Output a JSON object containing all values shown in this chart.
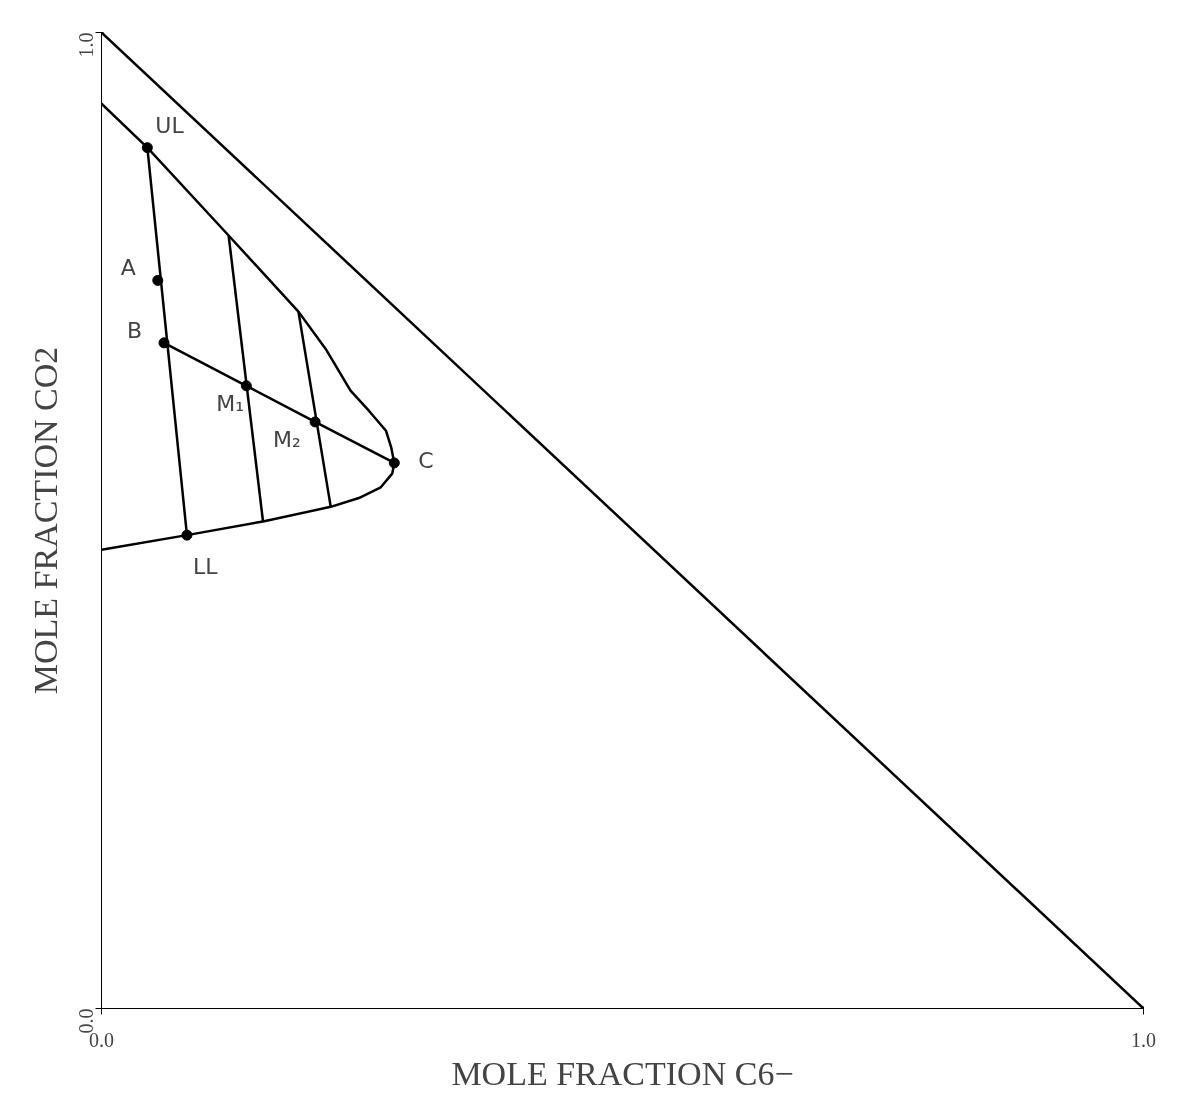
{
  "chart_data": {
    "type": "line",
    "xlabel": "MOLE FRACTION C6−",
    "ylabel": "MOLE FRACTION CO2",
    "xlim": [
      0,
      1
    ],
    "ylim": [
      0,
      1
    ],
    "xticks": [
      {
        "value": 0,
        "label": "0.0"
      },
      {
        "value": 1,
        "label": "1.0"
      }
    ],
    "yticks": [
      {
        "value": 0,
        "label": "0.0"
      },
      {
        "value": 1,
        "label": "1.0"
      }
    ],
    "marker": "none",
    "line_style": "solid",
    "series": [
      {
        "color": "#000000",
        "x": [
          0,
          1
        ],
        "values": [
          1,
          0
        ]
      },
      {
        "color": "#000000",
        "x": [
          0,
          0.044,
          0.122,
          0.189,
          0.215,
          0.239,
          0.257,
          0.273,
          0.278,
          0.281,
          0.279,
          0.268,
          0.247,
          0.22,
          0.155,
          0.082,
          0
        ],
        "values": [
          0.927,
          0.882,
          0.792,
          0.714,
          0.676,
          0.633,
          0.612,
          0.592,
          0.575,
          0.559,
          0.548,
          0.534,
          0.523,
          0.514,
          0.499,
          0.485,
          0.47
        ]
      },
      {
        "color": "#000000",
        "x": [
          0.044,
          0.082
        ],
        "values": [
          0.882,
          0.485
        ]
      },
      {
        "color": "#000000",
        "x": [
          0.122,
          0.155
        ],
        "values": [
          0.792,
          0.499
        ]
      },
      {
        "color": "#000000",
        "x": [
          0.189,
          0.22
        ],
        "values": [
          0.714,
          0.514
        ]
      },
      {
        "color": "#000000",
        "x": [
          0.06,
          0.139,
          0.205,
          0.281
        ],
        "values": [
          0.682,
          0.638,
          0.601,
          0.559
        ]
      },
      {
        "type": "scatter",
        "marker": "circle",
        "color": "#000000",
        "x": [
          0.044,
          0.054,
          0.06,
          0.139,
          0.205,
          0.281,
          0.082
        ],
        "values": [
          0.882,
          0.746,
          0.682,
          0.638,
          0.601,
          0.559,
          0.485
        ]
      }
    ],
    "annotations": [
      {
        "text": "UL",
        "x": 0.044,
        "y": 0.882
      },
      {
        "text": "A",
        "x": 0.054,
        "y": 0.746
      },
      {
        "text": "B",
        "x": 0.06,
        "y": 0.682
      },
      {
        "text": "M₁",
        "x": 0.139,
        "y": 0.638
      },
      {
        "text": "M₂",
        "x": 0.205,
        "y": 0.601
      },
      {
        "text": "C",
        "x": 0.281,
        "y": 0.559
      },
      {
        "text": "LL",
        "x": 0.082,
        "y": 0.485
      }
    ]
  }
}
